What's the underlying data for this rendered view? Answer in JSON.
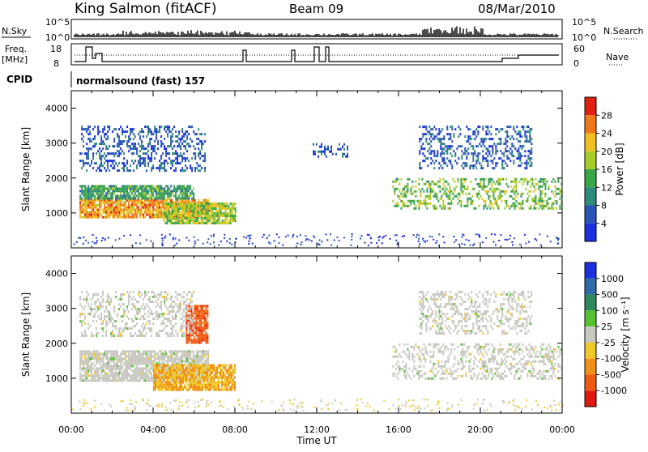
{
  "header": {
    "station": "King Salmon (fitACF)",
    "beam": "Beam 09",
    "date": "08/Mar/2010"
  },
  "panels_top": {
    "nsky_label": "N.Sky",
    "nsky_tick_hi": "10^5",
    "nsky_tick_lo": "10^0",
    "nsearch_label": "N.Search",
    "nsearch_tick_hi": "10^5",
    "nsearch_tick_lo": "10^0",
    "freq_label_1": "Freq.",
    "freq_label_2": "[MHz]",
    "freq_tick_hi": "18",
    "freq_tick_lo": "8",
    "nave_label": "Nave",
    "nave_tick_hi": "60",
    "nave_tick_lo": "0",
    "cpid_label": "CPID",
    "cpid_value": "normalsound (fast) 157"
  },
  "chart_data": [
    {
      "type": "heatmap",
      "name": "Power",
      "ylabel": "Slant Range [km]",
      "xlabel": "Time UT",
      "xlim": [
        "00:00",
        "24:00"
      ],
      "ylim": [
        0,
        4500
      ],
      "x_ticks": [
        "00:00",
        "04:00",
        "08:00",
        "12:00",
        "16:00",
        "20:00",
        "00:00"
      ],
      "y_ticks": [
        1000,
        2000,
        3000,
        4000
      ],
      "colorbar": {
        "label": "Power [dB]",
        "ticks": [
          "4",
          "8",
          "12",
          "16",
          "20",
          "24",
          "28"
        ],
        "colors": [
          "#1a2fe0",
          "#2c55b8",
          "#2e8a7a",
          "#3aa64a",
          "#a8cc2a",
          "#f0c020",
          "#f07818",
          "#e02010"
        ]
      },
      "regions": [
        {
          "t0": 0.4,
          "t1": 6.7,
          "r0": 900,
          "r1": 1400,
          "power": 24
        },
        {
          "t0": 4.5,
          "t1": 8.0,
          "r0": 700,
          "r1": 1300,
          "power": 18
        },
        {
          "t0": 0.4,
          "t1": 6.0,
          "r0": 1400,
          "r1": 1800,
          "power": 12
        },
        {
          "t0": 0.4,
          "t1": 6.5,
          "r0": 2200,
          "r1": 3500,
          "power": 6
        },
        {
          "t0": 11.8,
          "t1": 13.5,
          "r0": 2600,
          "r1": 3000,
          "power": 5
        },
        {
          "t0": 15.7,
          "t1": 24.0,
          "r0": 1100,
          "r1": 2000,
          "power": 16
        },
        {
          "t0": 17.0,
          "t1": 22.5,
          "r0": 2300,
          "r1": 3500,
          "power": 6
        }
      ]
    },
    {
      "type": "heatmap",
      "name": "Velocity",
      "ylabel": "Slant Range [km]",
      "xlabel": "Time UT",
      "xlim": [
        "00:00",
        "24:00"
      ],
      "ylim": [
        0,
        4500
      ],
      "x_ticks": [
        "00:00",
        "04:00",
        "08:00",
        "12:00",
        "16:00",
        "20:00",
        "00:00"
      ],
      "y_ticks": [
        1000,
        2000,
        3000,
        4000
      ],
      "colorbar": {
        "label": "Velocity [m s⁻¹]",
        "ticks": [
          "1000",
          "500",
          "100",
          "25",
          "-25",
          "-100",
          "-500",
          "-1000"
        ],
        "colors": [
          "#1a2fe0",
          "#2e6aa8",
          "#2e8a5a",
          "#55c030",
          "#c8c8c0",
          "#f0c828",
          "#f09018",
          "#f05a10",
          "#e01a10"
        ]
      },
      "regions": [
        {
          "t0": 0.4,
          "t1": 6.7,
          "r0": 900,
          "r1": 1800,
          "velocity": 0
        },
        {
          "t0": 4.0,
          "t1": 8.0,
          "r0": 700,
          "r1": 1400,
          "velocity": -100
        },
        {
          "t0": 5.6,
          "t1": 6.7,
          "r0": 2000,
          "r1": 3100,
          "velocity": -800
        },
        {
          "t0": 0.4,
          "t1": 6.0,
          "r0": 2200,
          "r1": 3500,
          "velocity": 0
        },
        {
          "t0": 15.7,
          "t1": 24.0,
          "r0": 1000,
          "r1": 2000,
          "velocity": 0
        },
        {
          "t0": 17.0,
          "t1": 22.5,
          "r0": 2300,
          "r1": 3500,
          "velocity": 0
        }
      ]
    }
  ]
}
